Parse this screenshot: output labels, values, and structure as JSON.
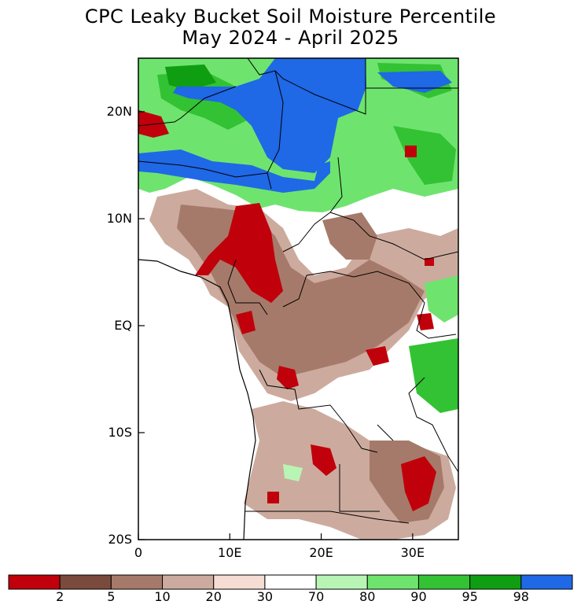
{
  "title": "CPC Leaky Bucket Soil Moisture Percentile",
  "subtitle": "May 2024 - April 2025",
  "map": {
    "lon_range": [
      0,
      35
    ],
    "lat_range": [
      -20,
      25
    ],
    "x_ticks": [
      {
        "label": "0",
        "value": 0
      },
      {
        "label": "10E",
        "value": 10
      },
      {
        "label": "20E",
        "value": 20
      },
      {
        "label": "30E",
        "value": 30
      }
    ],
    "y_ticks": [
      {
        "label": "20N",
        "value": 20
      },
      {
        "label": "10N",
        "value": 10
      },
      {
        "label": "EQ",
        "value": 0
      },
      {
        "label": "10S",
        "value": -10
      },
      {
        "label": "20S",
        "value": -20
      }
    ]
  },
  "colorbar": {
    "colors": [
      "#c0000b",
      "#7a4a3c",
      "#a67a6a",
      "#ccab9e",
      "#f5ddd3",
      "#ffffff",
      "#b8f5b5",
      "#6ee46e",
      "#33c233",
      "#0f9e12",
      "#1f68e6"
    ],
    "labels": [
      "2",
      "5",
      "10",
      "20",
      "30",
      "70",
      "80",
      "90",
      "95",
      "98"
    ]
  }
}
